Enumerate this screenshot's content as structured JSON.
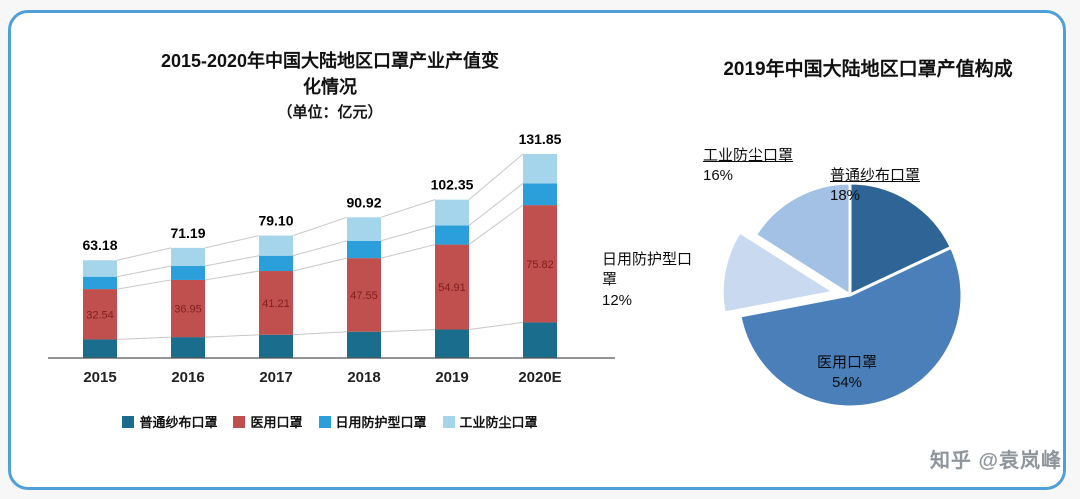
{
  "left_chart": {
    "title_line1": "2015-2020年中国大陆地区口罩产业产值变",
    "title_line2": "化情况",
    "unit": "（单位：亿元）"
  },
  "right_chart": {
    "title": "2019年中国大陆地区口罩产值构成",
    "callouts": {
      "industrial": {
        "name": "工业防尘口罩",
        "pct": "16%"
      },
      "gauze": {
        "name": "普通纱布口罩",
        "pct": "18%"
      },
      "daily": {
        "name": "日用防护型口罩",
        "pct": "12%"
      },
      "medical": {
        "name": "医用口罩",
        "pct": "54%"
      }
    }
  },
  "watermark": "知乎 @袁岚峰",
  "chart_data": [
    {
      "type": "bar",
      "stacked": true,
      "title": "2015-2020年中国大陆地区口罩产业产值变化情况",
      "subtitle": "（单位：亿元）",
      "categories": [
        "2015",
        "2016",
        "2017",
        "2018",
        "2019",
        "2020E"
      ],
      "series": [
        {
          "name": "普通纱布口罩",
          "color": "#1b6d8d",
          "values": [
            12.0,
            13.5,
            15.0,
            17.0,
            18.4,
            23.0
          ]
        },
        {
          "name": "医用口罩",
          "color": "#c0504d",
          "values": [
            32.54,
            36.95,
            41.21,
            47.55,
            54.91,
            75.82
          ],
          "labels_visible": true
        },
        {
          "name": "日用防护型口罩",
          "color": "#2b9fd9",
          "values": [
            8.0,
            9.0,
            9.9,
            11.2,
            12.3,
            14.0
          ]
        },
        {
          "name": "工业防尘口罩",
          "color": "#a5d5ea",
          "values": [
            10.64,
            11.74,
            12.99,
            15.17,
            16.74,
            19.03
          ]
        }
      ],
      "totals": [
        63.18,
        71.19,
        79.1,
        90.92,
        102.35,
        131.85
      ],
      "ylim": [
        0,
        140
      ],
      "grid": false,
      "legend_position": "bottom",
      "note": "only medical-series segment values and stacked totals are printed on the chart"
    },
    {
      "type": "pie",
      "title": "2019年中国大陆地区口罩产值构成",
      "labels": [
        "普通纱布口罩",
        "医用口罩",
        "日用防护型口罩",
        "工业防尘口罩"
      ],
      "values": [
        18,
        54,
        12,
        16
      ],
      "unit": "%",
      "colors": [
        "#2f6496",
        "#4a7fba",
        "#c8d9f0",
        "#a3c1e5"
      ],
      "start_angle_deg": 0,
      "clockwise": true,
      "exploded_index": 2
    }
  ]
}
